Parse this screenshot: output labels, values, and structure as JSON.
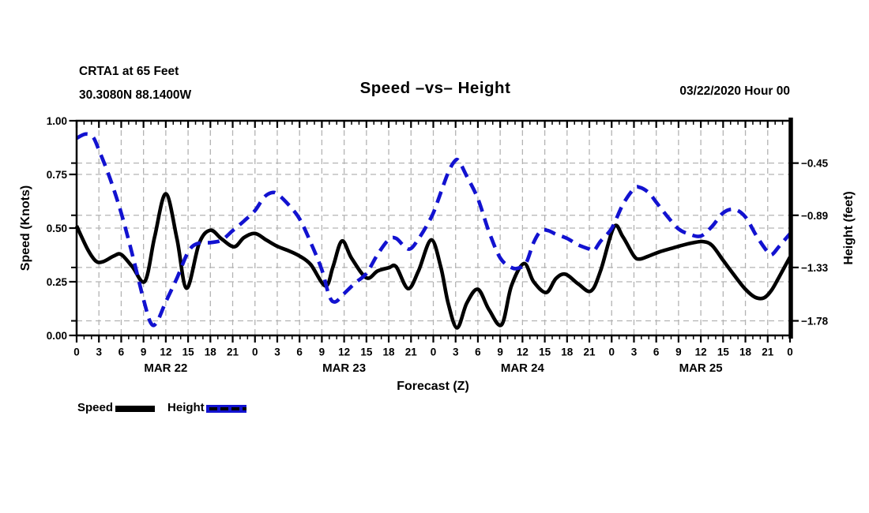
{
  "chart_data": {
    "type": "line",
    "station": "CRTA1 at 65 Feet",
    "location": "30.3080N 88.1400W",
    "title": "Speed –vs– Height",
    "datetime": "03/22/2020 Hour 00",
    "xlabel": "Forecast (Z)",
    "ylabel_left": "Speed (Knots)",
    "ylabel_right": "Height (feet)",
    "x_unit": "hours from 03/22/2020 00Z",
    "xlim": [
      0,
      96
    ],
    "ylim_left": [
      0.0,
      1.0
    ],
    "ylim_right": [
      -1.903,
      -0.093
    ],
    "yticks_left": [
      1.0,
      0.75,
      0.5,
      0.25,
      0.0
    ],
    "yticks_right": [
      -0.45,
      -0.89,
      -1.33,
      -1.78
    ],
    "xtick_step_hours": 3,
    "xtick_labels": [
      "0",
      "3",
      "6",
      "9",
      "12",
      "15",
      "18",
      "21",
      "0",
      "3",
      "6",
      "9",
      "12",
      "15",
      "18",
      "21",
      "0",
      "3",
      "6",
      "9",
      "12",
      "15",
      "18",
      "21",
      "0",
      "3",
      "6",
      "9",
      "12",
      "15",
      "18",
      "21",
      "0"
    ],
    "days": [
      {
        "label": "MAR 22",
        "center_hour": 12
      },
      {
        "label": "MAR 23",
        "center_hour": 36
      },
      {
        "label": "MAR 24",
        "center_hour": 60
      },
      {
        "label": "MAR 25",
        "center_hour": 84
      }
    ],
    "grid": true,
    "legend": [
      {
        "label": "Speed",
        "swatch": "solid-black-line"
      },
      {
        "label": "Height",
        "swatch": "blue-dashed-line"
      }
    ],
    "colors": {
      "speed_line": "#000000",
      "height_line": "#1212d0",
      "grid": "#b3b3b3",
      "frame": "#000000",
      "background": "#ffffff"
    },
    "series": [
      {
        "name": "Speed",
        "axis": "left",
        "units": "knots",
        "style": "solid",
        "color": "#000000",
        "points": [
          [
            0,
            0.51
          ],
          [
            1.5,
            0.4
          ],
          [
            2.6,
            0.346
          ],
          [
            3.6,
            0.344
          ],
          [
            5,
            0.37
          ],
          [
            6,
            0.377
          ],
          [
            7.5,
            0.32
          ],
          [
            9.2,
            0.253
          ],
          [
            10.5,
            0.46
          ],
          [
            12,
            0.66
          ],
          [
            13.5,
            0.45
          ],
          [
            14.8,
            0.22
          ],
          [
            16.5,
            0.43
          ],
          [
            18,
            0.49
          ],
          [
            19.5,
            0.45
          ],
          [
            21.2,
            0.413
          ],
          [
            22.5,
            0.455
          ],
          [
            24,
            0.475
          ],
          [
            25.5,
            0.445
          ],
          [
            27,
            0.415
          ],
          [
            28.5,
            0.395
          ],
          [
            30,
            0.37
          ],
          [
            31.5,
            0.33
          ],
          [
            33.5,
            0.23
          ],
          [
            34.5,
            0.32
          ],
          [
            35.7,
            0.44
          ],
          [
            37,
            0.36
          ],
          [
            39,
            0.268
          ],
          [
            40.5,
            0.3
          ],
          [
            42,
            0.315
          ],
          [
            43,
            0.32
          ],
          [
            44.6,
            0.218
          ],
          [
            46,
            0.3
          ],
          [
            47.7,
            0.445
          ],
          [
            49,
            0.32
          ],
          [
            50,
            0.15
          ],
          [
            51.2,
            0.035
          ],
          [
            52.5,
            0.15
          ],
          [
            54,
            0.215
          ],
          [
            55.5,
            0.12
          ],
          [
            57.2,
            0.05
          ],
          [
            58.5,
            0.23
          ],
          [
            60.2,
            0.335
          ],
          [
            61.5,
            0.25
          ],
          [
            63.2,
            0.2
          ],
          [
            64.5,
            0.265
          ],
          [
            65.8,
            0.285
          ],
          [
            67.5,
            0.24
          ],
          [
            69.2,
            0.207
          ],
          [
            70.5,
            0.3
          ],
          [
            72.3,
            0.505
          ],
          [
            73.5,
            0.46
          ],
          [
            75,
            0.37
          ],
          [
            75.8,
            0.356
          ],
          [
            77,
            0.37
          ],
          [
            78.5,
            0.39
          ],
          [
            80,
            0.405
          ],
          [
            81.5,
            0.42
          ],
          [
            83,
            0.432
          ],
          [
            84.3,
            0.437
          ],
          [
            85.5,
            0.42
          ],
          [
            87,
            0.35
          ],
          [
            88.5,
            0.28
          ],
          [
            90,
            0.215
          ],
          [
            91.3,
            0.178
          ],
          [
            92.5,
            0.175
          ],
          [
            93.5,
            0.21
          ],
          [
            94.5,
            0.27
          ],
          [
            96,
            0.365
          ]
        ]
      },
      {
        "name": "Height",
        "axis": "right",
        "units": "feet",
        "style": "dashed",
        "color": "#1212d0",
        "points": [
          [
            0,
            -0.24
          ],
          [
            1.2,
            -0.205
          ],
          [
            2.2,
            -0.23
          ],
          [
            3,
            -0.34
          ],
          [
            4.5,
            -0.58
          ],
          [
            6,
            -0.87
          ],
          [
            7.5,
            -1.22
          ],
          [
            9,
            -1.6
          ],
          [
            10,
            -1.8
          ],
          [
            10.8,
            -1.79
          ],
          [
            12,
            -1.62
          ],
          [
            13.5,
            -1.42
          ],
          [
            15,
            -1.2
          ],
          [
            16.2,
            -1.13
          ],
          [
            18,
            -1.12
          ],
          [
            19.5,
            -1.1
          ],
          [
            21,
            -1.02
          ],
          [
            22.5,
            -0.94
          ],
          [
            24,
            -0.85
          ],
          [
            25.2,
            -0.74
          ],
          [
            26.2,
            -0.7
          ],
          [
            27,
            -0.71
          ],
          [
            28.5,
            -0.8
          ],
          [
            30,
            -0.92
          ],
          [
            31.5,
            -1.12
          ],
          [
            33,
            -1.35
          ],
          [
            34,
            -1.57
          ],
          [
            34.8,
            -1.62
          ],
          [
            36,
            -1.55
          ],
          [
            37.5,
            -1.46
          ],
          [
            39,
            -1.38
          ],
          [
            40.5,
            -1.22
          ],
          [
            42,
            -1.095
          ],
          [
            43,
            -1.085
          ],
          [
            44.2,
            -1.16
          ],
          [
            45,
            -1.17
          ],
          [
            46,
            -1.09
          ],
          [
            47,
            -0.99
          ],
          [
            48,
            -0.87
          ],
          [
            49,
            -0.7
          ],
          [
            50,
            -0.53
          ],
          [
            50.8,
            -0.44
          ],
          [
            51.4,
            -0.43
          ],
          [
            52.5,
            -0.56
          ],
          [
            54,
            -0.75
          ],
          [
            55.5,
            -1.03
          ],
          [
            57,
            -1.25
          ],
          [
            58.5,
            -1.33
          ],
          [
            59.5,
            -1.335
          ],
          [
            60.5,
            -1.29
          ],
          [
            61.5,
            -1.12
          ],
          [
            62.5,
            -1.02
          ],
          [
            63.5,
            -1.02
          ],
          [
            64.5,
            -1.05
          ],
          [
            66,
            -1.085
          ],
          [
            67.5,
            -1.14
          ],
          [
            69,
            -1.175
          ],
          [
            69.6,
            -1.19
          ],
          [
            70.5,
            -1.11
          ],
          [
            72,
            -1.0
          ],
          [
            73.5,
            -0.8
          ],
          [
            75,
            -0.665
          ],
          [
            75.8,
            -0.655
          ],
          [
            77,
            -0.7
          ],
          [
            78,
            -0.78
          ],
          [
            79.5,
            -0.9
          ],
          [
            81,
            -1.005
          ],
          [
            82.5,
            -1.05
          ],
          [
            84,
            -1.065
          ],
          [
            85.5,
            -0.985
          ],
          [
            87,
            -0.87
          ],
          [
            88.5,
            -0.84
          ],
          [
            90,
            -0.905
          ],
          [
            91.5,
            -1.065
          ],
          [
            93,
            -1.2
          ],
          [
            93.6,
            -1.22
          ],
          [
            94.5,
            -1.155
          ],
          [
            96,
            -1.045
          ]
        ]
      }
    ]
  }
}
